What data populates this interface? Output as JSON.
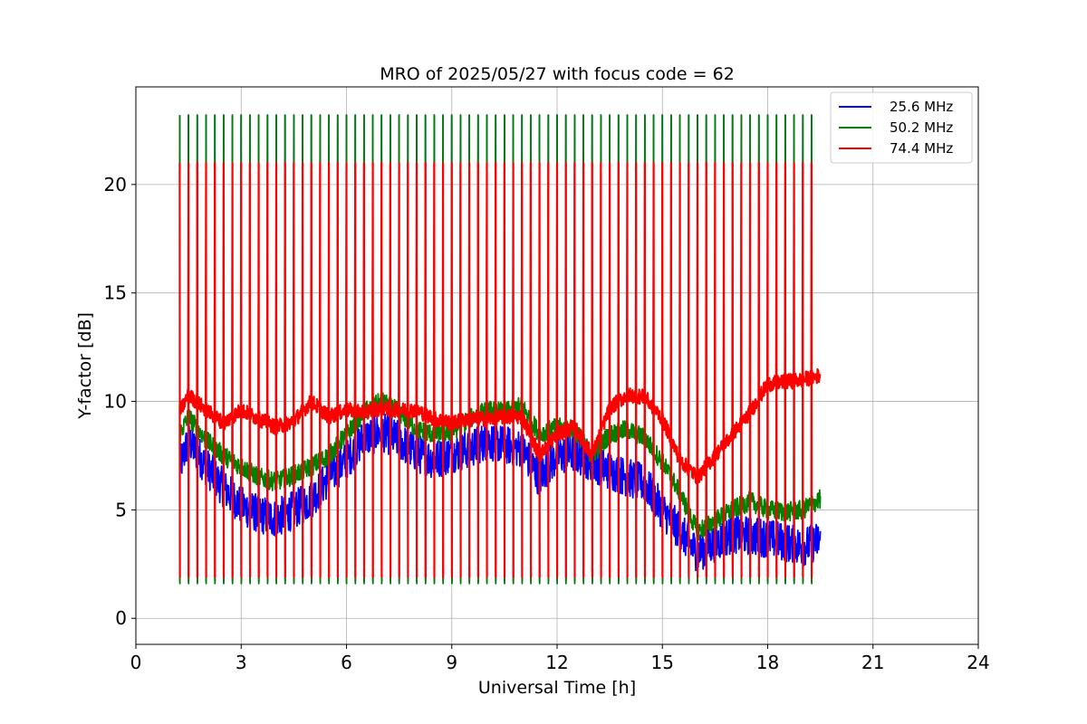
{
  "chart_data": {
    "type": "line",
    "title": "MRO of 2025/05/27 with focus code = 62",
    "xlabel": "Universal Time [h]",
    "ylabel": "Y-factor [dB]",
    "xlim": [
      0,
      24
    ],
    "ylim": [
      -1.2,
      24.5
    ],
    "xticks": [
      0,
      3,
      6,
      9,
      12,
      15,
      18,
      21,
      24
    ],
    "yticks": [
      0,
      5,
      10,
      15,
      20
    ],
    "grid": true,
    "legend_position": "top-right",
    "calibration_pulses": {
      "start_hour": 1.25,
      "end_hour": 19.3,
      "interval_hours": 0.25,
      "pulse_peak_db": {
        "25.6 MHz": 23.2,
        "50.2 MHz": 23.2,
        "74.4 MHz": 21.0
      },
      "pulse_floor_db": {
        "25.6 MHz": 1.7,
        "50.2 MHz": 1.6,
        "74.4 MHz": 1.9
      }
    },
    "series": [
      {
        "name": "25.6 MHz",
        "color": "#0000ff",
        "x": [
          1.25,
          1.5,
          2.0,
          2.5,
          3.0,
          3.5,
          4.0,
          4.5,
          5.0,
          5.5,
          6.0,
          6.5,
          7.0,
          7.5,
          8.0,
          8.5,
          9.0,
          9.5,
          10.0,
          10.5,
          11.0,
          11.5,
          12.0,
          12.5,
          13.0,
          13.5,
          14.0,
          14.5,
          15.0,
          15.5,
          16.0,
          16.5,
          17.0,
          17.5,
          18.0,
          18.5,
          19.0,
          19.5
        ],
        "y": [
          7.0,
          8.2,
          7.0,
          6.0,
          5.2,
          4.8,
          4.6,
          5.0,
          5.5,
          6.5,
          7.3,
          8.3,
          8.6,
          8.2,
          7.6,
          7.3,
          7.6,
          7.8,
          8.2,
          8.0,
          7.8,
          6.5,
          7.5,
          7.6,
          7.2,
          6.8,
          6.5,
          6.2,
          5.0,
          4.0,
          3.0,
          3.5,
          3.9,
          3.8,
          3.7,
          3.5,
          3.3,
          3.6
        ]
      },
      {
        "name": "50.2 MHz",
        "color": "#008000",
        "x": [
          1.25,
          1.5,
          2.0,
          2.5,
          3.0,
          3.5,
          4.0,
          4.5,
          5.0,
          5.5,
          6.0,
          6.5,
          7.0,
          7.5,
          8.0,
          8.5,
          9.0,
          9.5,
          10.0,
          10.5,
          11.0,
          11.5,
          12.0,
          12.5,
          13.0,
          13.5,
          14.0,
          14.5,
          15.0,
          15.5,
          16.0,
          16.5,
          17.0,
          17.5,
          18.0,
          18.5,
          19.0,
          19.5
        ],
        "y": [
          8.5,
          9.3,
          8.2,
          7.5,
          7.0,
          6.5,
          6.3,
          6.6,
          7.0,
          7.5,
          8.5,
          9.5,
          10.0,
          9.5,
          8.7,
          8.5,
          8.6,
          9.2,
          9.6,
          9.5,
          9.8,
          8.5,
          8.8,
          8.7,
          7.5,
          8.5,
          8.7,
          8.3,
          7.2,
          5.8,
          4.0,
          4.5,
          5.0,
          5.4,
          5.0,
          4.9,
          5.0,
          5.5
        ]
      },
      {
        "name": "74.4 MHz",
        "color": "#ff0000",
        "x": [
          1.25,
          1.5,
          2.0,
          2.5,
          3.0,
          3.5,
          4.0,
          4.5,
          5.0,
          5.5,
          6.0,
          6.5,
          7.0,
          7.5,
          8.0,
          8.5,
          9.0,
          9.5,
          10.0,
          10.5,
          11.0,
          11.5,
          12.0,
          12.5,
          13.0,
          13.5,
          14.0,
          14.5,
          15.0,
          15.5,
          16.0,
          16.5,
          17.0,
          17.5,
          18.0,
          18.5,
          19.0,
          19.5
        ],
        "y": [
          9.5,
          10.3,
          9.6,
          9.0,
          9.6,
          9.2,
          8.8,
          9.1,
          10.0,
          9.3,
          9.6,
          9.5,
          9.7,
          9.6,
          9.6,
          9.2,
          9.0,
          9.2,
          9.2,
          9.3,
          9.3,
          7.5,
          8.5,
          8.8,
          7.5,
          9.7,
          10.3,
          10.2,
          9.2,
          7.3,
          6.5,
          7.5,
          8.5,
          9.5,
          10.8,
          10.9,
          11.0,
          11.2
        ]
      }
    ]
  }
}
